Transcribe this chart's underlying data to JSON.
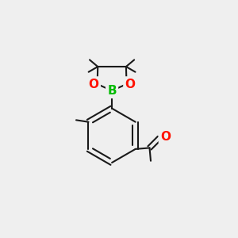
{
  "bg_color": "#efefef",
  "bond_color": "#1a1a1a",
  "bond_width": 1.5,
  "atom_B_color": "#00bb00",
  "atom_O_color": "#ff1100",
  "atom_C_color": "#1a1a1a",
  "font_size_B": 11,
  "font_size_O": 11,
  "figsize": [
    3.0,
    3.0
  ],
  "dpi": 100,
  "xlim": [
    0,
    10
  ],
  "ylim": [
    0,
    10
  ]
}
